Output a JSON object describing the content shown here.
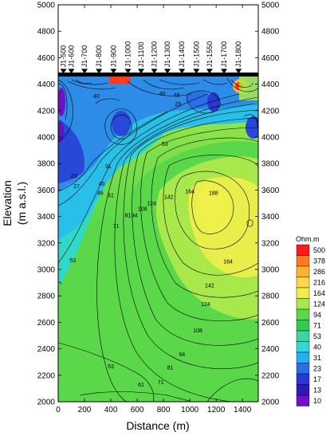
{
  "chart_data": {
    "type": "heatmap",
    "title": "",
    "xlabel": "Distance (m)",
    "ylabel_line1": "Elevation",
    "ylabel_line2": "(m a.s.l.)",
    "xlim": [
      0,
      1520
    ],
    "ylim": [
      2000,
      5000
    ],
    "x_ticks": [
      "0",
      "200",
      "400",
      "600",
      "800",
      "1000",
      "1200",
      "1400"
    ],
    "y_ticks": [
      "2000",
      "2200",
      "2400",
      "2600",
      "2800",
      "3000",
      "3200",
      "3400",
      "3600",
      "3800",
      "4000",
      "4200",
      "4400",
      "4600",
      "4800",
      "5000"
    ],
    "surface_elevation": 4480,
    "stations": [
      {
        "label": "J1-500",
        "x": 40
      },
      {
        "label": "J1-600",
        "x": 100
      },
      {
        "label": "J1-700",
        "x": 200
      },
      {
        "label": "J1-800",
        "x": 310
      },
      {
        "label": "J1-900",
        "x": 420
      },
      {
        "label": "J1-1000",
        "x": 530
      },
      {
        "label": "J1-1100",
        "x": 630
      },
      {
        "label": "J1-1200",
        "x": 730
      },
      {
        "label": "J1-1300",
        "x": 830
      },
      {
        "label": "J1-1400",
        "x": 940
      },
      {
        "label": "J1-1500",
        "x": 1050
      },
      {
        "label": "J1-1550",
        "x": 1150
      },
      {
        "label": "J1-1700",
        "x": 1260
      },
      {
        "label": "J1-1800",
        "x": 1370
      }
    ],
    "colorbar": {
      "title": "Ohm.m",
      "levels": [
        "500",
        "378",
        "286",
        "216",
        "164",
        "124",
        "94",
        "71",
        "53",
        "40",
        "31",
        "23",
        "17",
        "13",
        "10"
      ],
      "colors": [
        "#ff1a1a",
        "#ff7a1a",
        "#ffb030",
        "#ffd84a",
        "#f0ee4a",
        "#a8e84a",
        "#5ad84a",
        "#30cc55",
        "#3ad8a0",
        "#30d8d8",
        "#28b0ee",
        "#2870e8",
        "#2838d0",
        "#3018b8",
        "#7010c8"
      ]
    },
    "contour_labels": [
      {
        "text": "188",
        "x": 1180,
        "y": 3570
      },
      {
        "text": "164",
        "x": 1000,
        "y": 3580
      },
      {
        "text": "164",
        "x": 1290,
        "y": 3050
      },
      {
        "text": "142",
        "x": 840,
        "y": 3540
      },
      {
        "text": "142",
        "x": 1150,
        "y": 2870
      },
      {
        "text": "124",
        "x": 710,
        "y": 3490
      },
      {
        "text": "124",
        "x": 1120,
        "y": 2730
      },
      {
        "text": "108",
        "x": 640,
        "y": 3450
      },
      {
        "text": "108",
        "x": 1060,
        "y": 2530
      },
      {
        "text": "94",
        "x": 580,
        "y": 3400
      },
      {
        "text": "94",
        "x": 940,
        "y": 2350
      },
      {
        "text": "81",
        "x": 530,
        "y": 3400
      },
      {
        "text": "81",
        "x": 850,
        "y": 2250
      },
      {
        "text": "71",
        "x": 440,
        "y": 3320
      },
      {
        "text": "71",
        "x": 780,
        "y": 2140
      },
      {
        "text": "61",
        "x": 400,
        "y": 3550
      },
      {
        "text": "61",
        "x": 630,
        "y": 2120
      },
      {
        "text": "53",
        "x": 810,
        "y": 3940
      },
      {
        "text": "53",
        "x": 110,
        "y": 3060
      },
      {
        "text": "53",
        "x": 400,
        "y": 2260
      },
      {
        "text": "46",
        "x": 320,
        "y": 3570
      },
      {
        "text": "40",
        "x": 330,
        "y": 3640
      },
      {
        "text": "31",
        "x": 380,
        "y": 3770
      },
      {
        "text": "27",
        "x": 140,
        "y": 3620
      },
      {
        "text": "23",
        "x": 120,
        "y": 3700
      },
      {
        "text": "23",
        "x": 910,
        "y": 4240
      },
      {
        "text": "40",
        "x": 790,
        "y": 4320
      },
      {
        "text": "46",
        "x": 900,
        "y": 4310
      },
      {
        "text": "40",
        "x": 290,
        "y": 4300
      }
    ]
  }
}
